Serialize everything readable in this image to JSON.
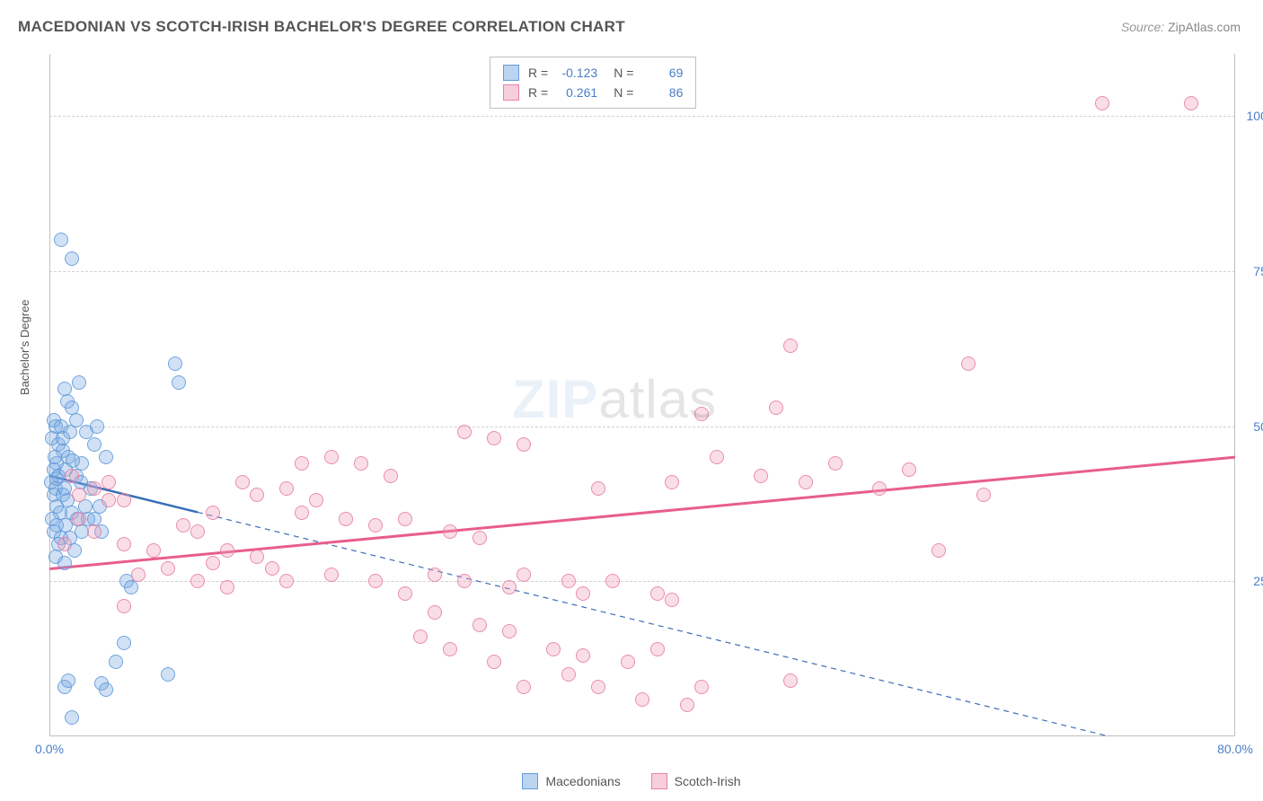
{
  "title": "MACEDONIAN VS SCOTCH-IRISH BACHELOR'S DEGREE CORRELATION CHART",
  "source_label": "Source: ",
  "source_value": "ZipAtlas.com",
  "ylabel": "Bachelor's Degree",
  "watermark_zip": "ZIP",
  "watermark_atlas": "atlas",
  "chart": {
    "type": "scatter",
    "xlim": [
      0,
      80
    ],
    "ylim": [
      0,
      110
    ],
    "yticks": [
      25,
      50,
      75,
      100
    ],
    "ytick_labels": [
      "25.0%",
      "50.0%",
      "75.0%",
      "100.0%"
    ],
    "xticks": [
      0,
      80
    ],
    "xtick_labels": [
      "0.0%",
      "80.0%"
    ],
    "grid_color": "#d0d0d0",
    "background_color": "#ffffff",
    "axis_color": "#c0c0c0",
    "marker_size": 16,
    "series": [
      {
        "name": "Macedonians",
        "color_fill": "rgba(120,170,225,0.35)",
        "color_stroke": "rgba(90,150,215,0.8)",
        "R": "-0.123",
        "N": "69",
        "trend": {
          "x1": 0,
          "y1": 42,
          "x2": 80,
          "y2": -5,
          "solid_until_x": 10,
          "color": "#3a6fb5",
          "width": 2.5
        },
        "points": [
          [
            0.8,
            80
          ],
          [
            1.5,
            77
          ],
          [
            1,
            56
          ],
          [
            2,
            57
          ],
          [
            1.2,
            54
          ],
          [
            1.5,
            53
          ],
          [
            0.3,
            51
          ],
          [
            0.4,
            50
          ],
          [
            0.8,
            50
          ],
          [
            1.4,
            49
          ],
          [
            0.2,
            48
          ],
          [
            0.6,
            47
          ],
          [
            0.9,
            46
          ],
          [
            1.3,
            45
          ],
          [
            2.5,
            49
          ],
          [
            2.2,
            44
          ],
          [
            3.2,
            50
          ],
          [
            3,
            47
          ],
          [
            3.8,
            45
          ],
          [
            0.5,
            44
          ],
          [
            0.3,
            43
          ],
          [
            1.1,
            43
          ],
          [
            0.6,
            42
          ],
          [
            1.8,
            42
          ],
          [
            0.15,
            41
          ],
          [
            0.4,
            40
          ],
          [
            1,
            40
          ],
          [
            2.1,
            41
          ],
          [
            2.8,
            40
          ],
          [
            2.4,
            37
          ],
          [
            0.3,
            39
          ],
          [
            0.9,
            39
          ],
          [
            1.2,
            38
          ],
          [
            0.5,
            37
          ],
          [
            0.7,
            36
          ],
          [
            1.5,
            36
          ],
          [
            1.9,
            35
          ],
          [
            0.2,
            35
          ],
          [
            2.6,
            35
          ],
          [
            0.5,
            34
          ],
          [
            1.1,
            34
          ],
          [
            3.4,
            37
          ],
          [
            3,
            35
          ],
          [
            0.3,
            33
          ],
          [
            0.8,
            32
          ],
          [
            1.4,
            32
          ],
          [
            2.2,
            33
          ],
          [
            0.6,
            31
          ],
          [
            1.7,
            30
          ],
          [
            3.5,
            33
          ],
          [
            0.4,
            29
          ],
          [
            1,
            28
          ],
          [
            5.2,
            25
          ],
          [
            5.5,
            24
          ],
          [
            8.5,
            60
          ],
          [
            8.7,
            57
          ],
          [
            8,
            10
          ],
          [
            5,
            15
          ],
          [
            4.5,
            12
          ],
          [
            1,
            8
          ],
          [
            1.3,
            9
          ],
          [
            3.5,
            8.5
          ],
          [
            3.8,
            7.5
          ],
          [
            1.5,
            3
          ],
          [
            0.5,
            41.5
          ],
          [
            1.6,
            44.5
          ],
          [
            0.35,
            45
          ],
          [
            0.9,
            48
          ],
          [
            1.8,
            51
          ]
        ]
      },
      {
        "name": "Scotch-Irish",
        "color_fill": "rgba(240,160,185,0.35)",
        "color_stroke": "rgba(230,120,160,0.8)",
        "R": "0.261",
        "N": "86",
        "trend": {
          "x1": 0,
          "y1": 27,
          "x2": 80,
          "y2": 45,
          "color": "#e85d8f",
          "width": 3
        },
        "points": [
          [
            71,
            102
          ],
          [
            77,
            102
          ],
          [
            50,
            63
          ],
          [
            62,
            60
          ],
          [
            44,
            52
          ],
          [
            28,
            49
          ],
          [
            30,
            48
          ],
          [
            32,
            47
          ],
          [
            17,
            44
          ],
          [
            19,
            45
          ],
          [
            21,
            44
          ],
          [
            23,
            42
          ],
          [
            53,
            44
          ],
          [
            58,
            43
          ],
          [
            42,
            41
          ],
          [
            48,
            42
          ],
          [
            51,
            41
          ],
          [
            56,
            40
          ],
          [
            63,
            39
          ],
          [
            37,
            40
          ],
          [
            13,
            41
          ],
          [
            14,
            39
          ],
          [
            16,
            40
          ],
          [
            18,
            38
          ],
          [
            11,
            36
          ],
          [
            9,
            34
          ],
          [
            10,
            33
          ],
          [
            17,
            36
          ],
          [
            20,
            35
          ],
          [
            22,
            34
          ],
          [
            24,
            35
          ],
          [
            27,
            33
          ],
          [
            29,
            32
          ],
          [
            12,
            30
          ],
          [
            14,
            29
          ],
          [
            11,
            28
          ],
          [
            8,
            27
          ],
          [
            6,
            26
          ],
          [
            15,
            27
          ],
          [
            10,
            25
          ],
          [
            12,
            24
          ],
          [
            16,
            25
          ],
          [
            19,
            26
          ],
          [
            22,
            25
          ],
          [
            24,
            23
          ],
          [
            26,
            26
          ],
          [
            28,
            25
          ],
          [
            31,
            24
          ],
          [
            32,
            26
          ],
          [
            35,
            25
          ],
          [
            36,
            23
          ],
          [
            38,
            25
          ],
          [
            41,
            23
          ],
          [
            5,
            31
          ],
          [
            7,
            30
          ],
          [
            3,
            40
          ],
          [
            4,
            38
          ],
          [
            2,
            35
          ],
          [
            3,
            33
          ],
          [
            5,
            38
          ],
          [
            4,
            41
          ],
          [
            2,
            39
          ],
          [
            1.5,
            42
          ],
          [
            45,
            45
          ],
          [
            42,
            22
          ],
          [
            25,
            16
          ],
          [
            27,
            14
          ],
          [
            30,
            12
          ],
          [
            34,
            14
          ],
          [
            36,
            13
          ],
          [
            39,
            12
          ],
          [
            41,
            14
          ],
          [
            32,
            8
          ],
          [
            35,
            10
          ],
          [
            37,
            8
          ],
          [
            40,
            6
          ],
          [
            43,
            5
          ],
          [
            44,
            8
          ],
          [
            31,
            17
          ],
          [
            29,
            18
          ],
          [
            26,
            20
          ],
          [
            50,
            9
          ],
          [
            5,
            21
          ],
          [
            1,
            31
          ],
          [
            49,
            53
          ],
          [
            60,
            30
          ]
        ]
      }
    ]
  },
  "legend_top": {
    "rows": [
      {
        "swatch": "blue",
        "R_label": "R =",
        "R_val": "-0.123",
        "N_label": "N =",
        "N_val": "69"
      },
      {
        "swatch": "pink",
        "R_label": "R =",
        "R_val": "0.261",
        "N_label": "N =",
        "N_val": "86"
      }
    ]
  },
  "legend_bottom": {
    "items": [
      {
        "swatch": "blue",
        "label": "Macedonians"
      },
      {
        "swatch": "pink",
        "label": "Scotch-Irish"
      }
    ]
  }
}
